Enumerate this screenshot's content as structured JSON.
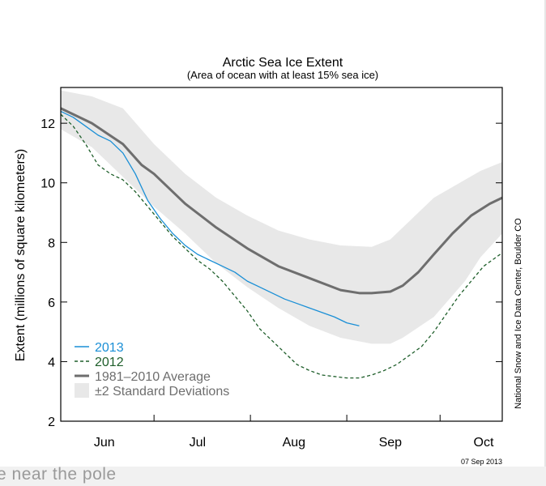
{
  "chart_data": {
    "type": "line",
    "title": "Arctic Sea Ice Extent",
    "subtitle": "(Area of ocean with at least 15% sea ice)",
    "ylabel": "Extent (millions of square kilometers)",
    "xlabel": "",
    "ylim": [
      2,
      13.2
    ],
    "yticks": [
      2,
      4,
      6,
      8,
      10,
      12
    ],
    "xrange_days": [
      0,
      142
    ],
    "month_ticks": [
      {
        "label": "Jun",
        "center_day": 14
      },
      {
        "label": "Jul",
        "center_day": 44
      },
      {
        "label": "Aug",
        "center_day": 75
      },
      {
        "label": "Sep",
        "center_day": 106
      },
      {
        "label": "Oct",
        "center_day": 136
      }
    ],
    "month_boundaries": [
      30,
      61,
      92,
      122
    ],
    "series": [
      {
        "name": "2013",
        "color": "#1a8fd6",
        "style": "solid",
        "x": [
          0,
          4,
          8,
          12,
          16,
          20,
          24,
          28,
          32,
          36,
          40,
          44,
          48,
          52,
          56,
          60,
          64,
          68,
          72,
          76,
          80,
          84,
          88,
          92,
          96
        ],
        "y": [
          12.4,
          12.2,
          11.9,
          11.6,
          11.4,
          11.0,
          10.3,
          9.4,
          8.8,
          8.3,
          7.9,
          7.6,
          7.4,
          7.2,
          7.0,
          6.7,
          6.5,
          6.3,
          6.1,
          5.95,
          5.8,
          5.65,
          5.5,
          5.3,
          5.2
        ]
      },
      {
        "name": "2012",
        "color": "#1e5e2a",
        "style": "dashed",
        "x": [
          0,
          4,
          8,
          12,
          16,
          20,
          24,
          28,
          32,
          36,
          40,
          44,
          48,
          52,
          56,
          60,
          64,
          68,
          72,
          76,
          80,
          84,
          88,
          92,
          96,
          100,
          104,
          108,
          112,
          116,
          120,
          124,
          128,
          132,
          136,
          140,
          142
        ],
        "y": [
          12.3,
          11.9,
          11.3,
          10.6,
          10.3,
          10.1,
          9.7,
          9.2,
          8.7,
          8.2,
          7.8,
          7.4,
          7.1,
          6.7,
          6.2,
          5.7,
          5.1,
          4.7,
          4.3,
          3.9,
          3.7,
          3.55,
          3.5,
          3.45,
          3.45,
          3.55,
          3.7,
          3.9,
          4.2,
          4.5,
          5.0,
          5.6,
          6.2,
          6.7,
          7.2,
          7.5,
          7.65
        ]
      },
      {
        "name": "1981–2010 Average",
        "color": "#6e6e6e",
        "style": "solid-thick",
        "x": [
          0,
          10,
          20,
          26,
          30,
          40,
          50,
          60,
          70,
          80,
          90,
          96,
          100,
          106,
          110,
          115,
          120,
          126,
          132,
          138,
          142
        ],
        "y": [
          12.5,
          12.0,
          11.3,
          10.6,
          10.3,
          9.3,
          8.5,
          7.8,
          7.2,
          6.8,
          6.4,
          6.3,
          6.3,
          6.35,
          6.55,
          7.0,
          7.6,
          8.3,
          8.9,
          9.3,
          9.5
        ]
      }
    ],
    "band": {
      "name": "±2 Standard Deviations",
      "color": "#e8e8e8",
      "x": [
        0,
        10,
        20,
        30,
        40,
        50,
        60,
        70,
        80,
        90,
        100,
        106,
        110,
        120,
        130,
        135,
        142
      ],
      "upper": [
        13.1,
        12.9,
        12.5,
        11.3,
        10.3,
        9.5,
        8.9,
        8.4,
        8.1,
        7.9,
        7.85,
        8.1,
        8.5,
        9.5,
        10.1,
        10.4,
        10.7
      ],
      "lower": [
        11.8,
        11.2,
        10.2,
        9.2,
        8.3,
        7.3,
        6.5,
        5.8,
        5.2,
        4.8,
        4.6,
        4.6,
        4.8,
        5.5,
        6.7,
        7.5,
        8.3
      ]
    },
    "legend": {
      "placement": "bottom-left",
      "entries": [
        {
          "label": "2013",
          "color": "#1a8fd6",
          "kind": "line"
        },
        {
          "label": "2012",
          "color": "#1e5e2a",
          "kind": "dash"
        },
        {
          "label": "1981–2010 Average",
          "color": "#6e6e6e",
          "kind": "thick"
        },
        {
          "label": "±2 Standard Deviations",
          "color": "#e8e8e8",
          "kind": "box"
        }
      ]
    },
    "credit": "National Snow and Ice Data Center, Boulder CO",
    "date": "07 Sep 2013"
  },
  "footer": {
    "text": "e near the pole"
  }
}
